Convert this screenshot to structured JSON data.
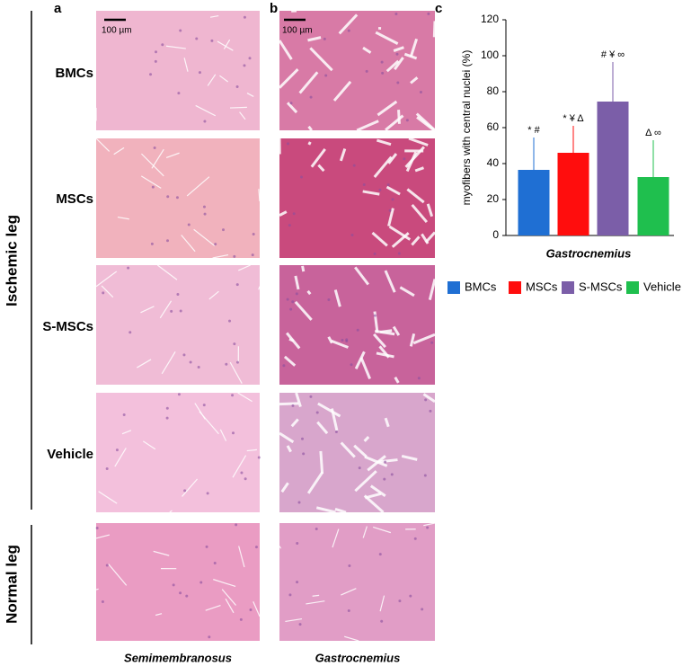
{
  "figure": {
    "panels": [
      "a",
      "b",
      "c"
    ],
    "scale_bars": [
      "100 µm",
      "100 µm"
    ],
    "rows": [
      "BMCs",
      "MSCs",
      "S-MSCs",
      "Vehicle"
    ],
    "groups": [
      "Ischemic leg",
      "Normal leg"
    ],
    "columns": [
      "Semimembranosus",
      "Gastrocnemius"
    ]
  },
  "chart_data": {
    "type": "bar",
    "categories": [
      "BMCs",
      "MSCs",
      "S-MSCs",
      "Vehicle"
    ],
    "values": [
      36.5,
      46,
      74.5,
      32.5
    ],
    "errors": [
      18,
      15,
      22,
      20.5
    ],
    "colors": [
      "#1f6fd3",
      "#ff0d0d",
      "#7b5ea8",
      "#1fbf4e"
    ],
    "annotations": [
      "* #",
      "* ¥ Δ",
      "# ¥ ∞",
      "Δ ∞"
    ],
    "ylabel": "myofibers with central nuclei   (%)",
    "xlabel": "Gastrocnemius",
    "ylim": [
      0,
      120
    ],
    "yticks": [
      0,
      20,
      40,
      60,
      80,
      100,
      120
    ],
    "legend": "bottom"
  }
}
